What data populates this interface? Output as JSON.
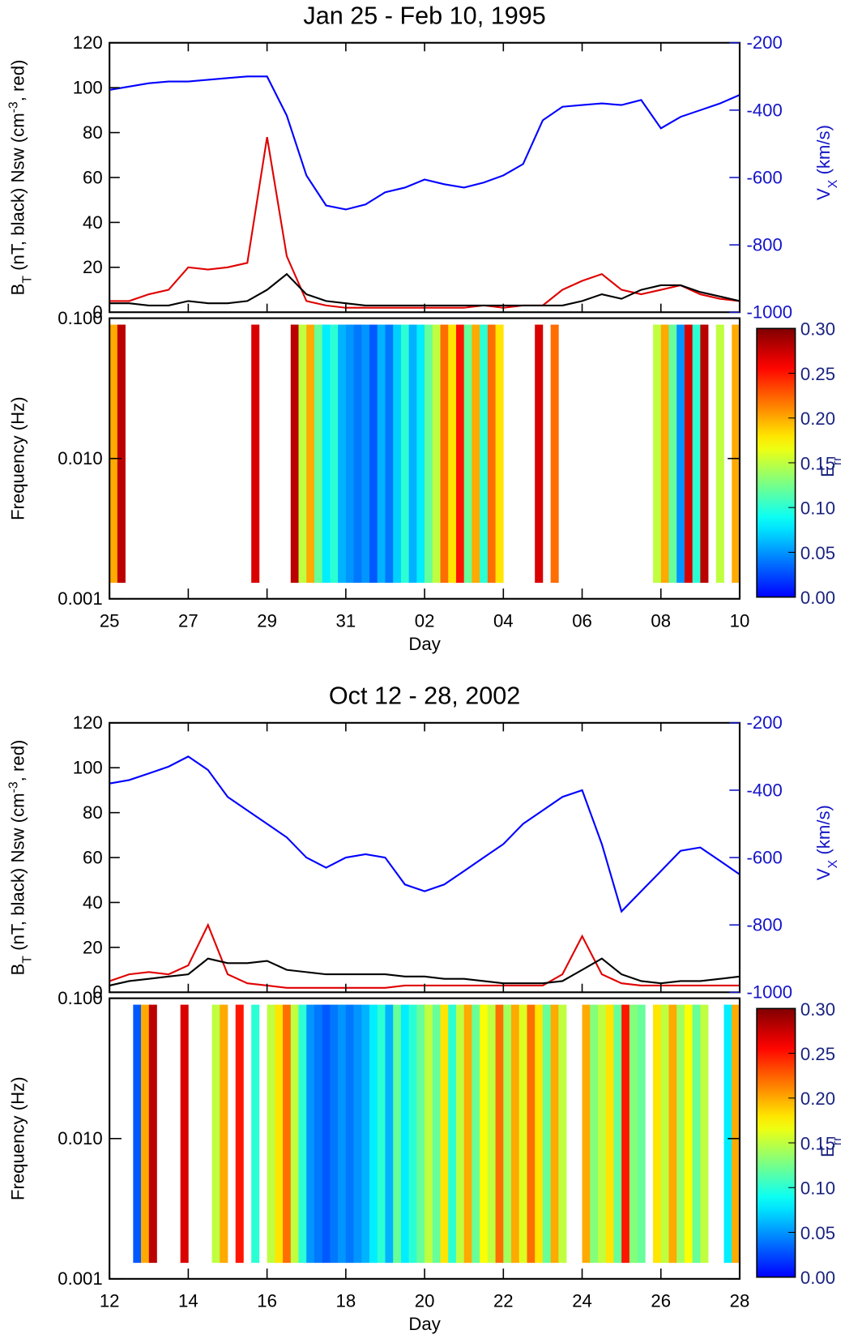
{
  "chart_data": [
    {
      "type": "line",
      "title": "Jan 25 - Feb 10, 1995",
      "x": [
        0,
        0.5,
        1,
        1.5,
        2,
        2.5,
        3,
        3.5,
        4,
        4.5,
        5,
        5.5,
        6,
        6.5,
        7,
        7.5,
        8,
        8.5,
        9,
        9.5,
        10,
        10.5,
        11,
        11.5,
        12,
        12.5,
        13,
        13.5,
        14,
        14.5,
        15,
        15.5,
        16
      ],
      "xlim": [
        0,
        16
      ],
      "ylim": [
        0,
        120
      ],
      "yticks": [
        0,
        20,
        40,
        60,
        80,
        100,
        120
      ],
      "y2lim": [
        -1000,
        -200
      ],
      "y2ticks": [
        -1000,
        -800,
        -600,
        -400,
        -200
      ],
      "ylabel": [
        {
          "text": "B"
        },
        {
          "text": "T",
          "script": "sub"
        },
        {
          "text": " (nT, black) Nsw (cm"
        },
        {
          "text": "-3",
          "script": "super"
        },
        {
          "text": ", red)"
        }
      ],
      "y2label": [
        {
          "text": "V"
        },
        {
          "text": "X",
          "script": "sub"
        },
        {
          "text": " (km/s)"
        }
      ],
      "y2color": "#1515c8",
      "series": [
        {
          "color": "#0000ff",
          "axis": "y2",
          "values": [
            -340,
            -330,
            -320,
            -315,
            -315,
            -310,
            -305,
            -300,
            -300,
            -416,
            -594,
            -683,
            -695,
            -680,
            -644,
            -630,
            -606,
            -620,
            -630,
            -615,
            -594,
            -560,
            -430,
            -390,
            -385,
            -380,
            -385,
            -370,
            -454,
            -420,
            -400,
            -380,
            -355
          ]
        },
        {
          "color": "#e00000",
          "values": [
            5,
            5,
            8,
            10,
            20,
            19,
            20,
            22,
            78,
            25,
            5,
            3,
            2,
            2,
            2,
            2,
            2,
            2,
            2,
            3,
            2,
            3,
            3,
            10,
            14,
            17,
            10,
            8,
            10,
            12,
            8,
            6,
            5
          ]
        },
        {
          "color": "#000000",
          "values": [
            4,
            4,
            3,
            3,
            5,
            4,
            4,
            5,
            10,
            17,
            8,
            5,
            4,
            3,
            3,
            3,
            3,
            3,
            3,
            3,
            3,
            3,
            3,
            3,
            5,
            8,
            6,
            10,
            12,
            12,
            9,
            7,
            5
          ]
        }
      ],
      "spectrogram": {
        "type": "heatmap",
        "log_y": true,
        "x": [
          0,
          0.2,
          0.4,
          0.6,
          0.8,
          1,
          1.2,
          1.4,
          1.6,
          1.8,
          2,
          2.2,
          2.4,
          2.6,
          2.8,
          3,
          3.2,
          3.4,
          3.6,
          3.8,
          4,
          4.2,
          4.4,
          4.6,
          4.8,
          5,
          5.2,
          5.4,
          5.6,
          5.8,
          6,
          6.2,
          6.4,
          6.6,
          6.8,
          7,
          7.2,
          7.4,
          7.6,
          7.8,
          8,
          8.2,
          8.4,
          8.6,
          8.8,
          9,
          9.2,
          9.4,
          9.6,
          9.8,
          10,
          10.2,
          10.4,
          10.6,
          10.8,
          11,
          11.2,
          11.4,
          11.6,
          11.8,
          12,
          12.2,
          12.4,
          12.6,
          12.8,
          13,
          13.2,
          13.4,
          13.6,
          13.8,
          14,
          14.2,
          14.4,
          14.6,
          14.8,
          15,
          15.2,
          15.4,
          15.6,
          15.8
        ],
        "values": [
          0.2,
          0.28,
          null,
          null,
          null,
          null,
          null,
          null,
          null,
          null,
          null,
          null,
          null,
          null,
          null,
          null,
          null,
          null,
          0.27,
          null,
          null,
          null,
          null,
          0.28,
          0.15,
          0.2,
          0.12,
          0.08,
          0.1,
          0.06,
          0.05,
          0.04,
          0.05,
          0.03,
          0.06,
          0.04,
          0.07,
          0.1,
          0.06,
          0.08,
          0.12,
          0.15,
          0.22,
          0.18,
          0.25,
          0.12,
          0.2,
          0.1,
          0.22,
          0.18,
          null,
          null,
          null,
          null,
          0.27,
          null,
          0.22,
          null,
          null,
          null,
          null,
          null,
          null,
          null,
          null,
          null,
          null,
          null,
          null,
          0.15,
          0.2,
          0.12,
          0.05,
          0.27,
          0.1,
          0.28,
          null,
          0.15,
          null,
          0.2
        ],
        "frequency_range": [
          0.0013,
          0.09
        ],
        "ylim": [
          0.001,
          0.1
        ],
        "yticks": [
          {
            "value": 0.001,
            "label": "0.001"
          },
          {
            "value": 0.01,
            "label": "0.010"
          },
          {
            "value": 0.1,
            "label": "0.100"
          }
        ],
        "ylabel": "Frequency (Hz)",
        "xlabel": "Day",
        "xticks": [
          {
            "value": 0,
            "label": "25"
          },
          {
            "value": 2,
            "label": "27"
          },
          {
            "value": 4,
            "label": "29"
          },
          {
            "value": 6,
            "label": "31"
          },
          {
            "value": 8,
            "label": "02"
          },
          {
            "value": 10,
            "label": "04"
          },
          {
            "value": 12,
            "label": "06"
          },
          {
            "value": 14,
            "label": "08"
          },
          {
            "value": 16,
            "label": "10"
          }
        ],
        "clim": [
          0,
          0.3
        ],
        "colorbar_ticks": [
          {
            "value": 0,
            "label": "0.00"
          },
          {
            "value": 0.05,
            "label": "0.05"
          },
          {
            "value": 0.1,
            "label": "0.10"
          },
          {
            "value": 0.15,
            "label": "0.15"
          },
          {
            "value": 0.2,
            "label": "0.20"
          },
          {
            "value": 0.25,
            "label": "0.25"
          },
          {
            "value": 0.3,
            "label": "0.30"
          }
        ],
        "colorbar_label": [
          {
            "text": "E"
          },
          {
            "text": "rr",
            "script": "sub"
          }
        ],
        "colorbar_color": "#1a237e"
      }
    },
    {
      "type": "line",
      "title": "Oct 12 - 28, 2002",
      "x": [
        0,
        0.5,
        1,
        1.5,
        2,
        2.5,
        3,
        3.5,
        4,
        4.5,
        5,
        5.5,
        6,
        6.5,
        7,
        7.5,
        8,
        8.5,
        9,
        9.5,
        10,
        10.5,
        11,
        11.5,
        12,
        12.5,
        13,
        13.5,
        14,
        14.5,
        15,
        15.5,
        16
      ],
      "xlim": [
        0,
        16
      ],
      "ylim": [
        0,
        120
      ],
      "yticks": [
        0,
        20,
        40,
        60,
        80,
        100,
        120
      ],
      "y2lim": [
        -1000,
        -200
      ],
      "y2ticks": [
        -1000,
        -800,
        -600,
        -400,
        -200
      ],
      "ylabel": [
        {
          "text": "B"
        },
        {
          "text": "T",
          "script": "sub"
        },
        {
          "text": " (nT, black) Nsw (cm"
        },
        {
          "text": "-3",
          "script": "super"
        },
        {
          "text": ", red)"
        }
      ],
      "y2label": [
        {
          "text": "V"
        },
        {
          "text": "X",
          "script": "sub"
        },
        {
          "text": " (km/s)"
        }
      ],
      "y2color": "#1515c8",
      "series": [
        {
          "color": "#0000ff",
          "axis": "y2",
          "values": [
            -380,
            -370,
            -350,
            -330,
            -300,
            -340,
            -420,
            -460,
            -500,
            -540,
            -600,
            -630,
            -600,
            -590,
            -600,
            -680,
            -700,
            -680,
            -640,
            -600,
            -560,
            -500,
            -460,
            -420,
            -400,
            -560,
            -760,
            -700,
            -640,
            -580,
            -570,
            -610,
            -650
          ]
        },
        {
          "color": "#e00000",
          "values": [
            5,
            8,
            9,
            8,
            12,
            30,
            8,
            4,
            3,
            2,
            2,
            2,
            2,
            2,
            2,
            3,
            3,
            3,
            3,
            3,
            3,
            3,
            3,
            8,
            25,
            8,
            4,
            3,
            3,
            3,
            3,
            3,
            3
          ]
        },
        {
          "color": "#000000",
          "values": [
            3,
            5,
            6,
            7,
            8,
            15,
            13,
            13,
            14,
            10,
            9,
            8,
            8,
            8,
            8,
            7,
            7,
            6,
            6,
            5,
            4,
            4,
            4,
            5,
            10,
            15,
            8,
            5,
            4,
            5,
            5,
            6,
            7
          ]
        }
      ],
      "spectrogram": {
        "type": "heatmap",
        "log_y": true,
        "x": [
          0,
          0.2,
          0.4,
          0.6,
          0.8,
          1,
          1.2,
          1.4,
          1.6,
          1.8,
          2,
          2.2,
          2.4,
          2.6,
          2.8,
          3,
          3.2,
          3.4,
          3.6,
          3.8,
          4,
          4.2,
          4.4,
          4.6,
          4.8,
          5,
          5.2,
          5.4,
          5.6,
          5.8,
          6,
          6.2,
          6.4,
          6.6,
          6.8,
          7,
          7.2,
          7.4,
          7.6,
          7.8,
          8,
          8.2,
          8.4,
          8.6,
          8.8,
          9,
          9.2,
          9.4,
          9.6,
          9.8,
          10,
          10.2,
          10.4,
          10.6,
          10.8,
          11,
          11.2,
          11.4,
          11.6,
          11.8,
          12,
          12.2,
          12.4,
          12.6,
          12.8,
          13,
          13.2,
          13.4,
          13.6,
          13.8,
          14,
          14.2,
          14.4,
          14.6,
          14.8,
          15,
          15.2,
          15.4,
          15.6,
          15.8
        ],
        "values": [
          null,
          null,
          null,
          0.03,
          0.2,
          0.28,
          null,
          null,
          null,
          0.27,
          null,
          null,
          null,
          0.15,
          0.2,
          null,
          0.25,
          null,
          0.1,
          null,
          0.15,
          0.18,
          0.22,
          0.15,
          0.1,
          0.05,
          0.04,
          0.03,
          0.04,
          0.05,
          0.04,
          0.05,
          0.06,
          0.08,
          0.1,
          0.06,
          0.12,
          0.08,
          0.1,
          0.12,
          0.15,
          0.12,
          0.18,
          0.1,
          0.15,
          0.2,
          0.12,
          0.17,
          0.15,
          0.22,
          0.14,
          0.2,
          0.16,
          0.22,
          0.18,
          0.12,
          0.2,
          0.15,
          null,
          null,
          0.2,
          0.13,
          0.15,
          0.18,
          0.12,
          0.25,
          0.13,
          0.12,
          null,
          0.18,
          0.15,
          0.2,
          0.14,
          0.17,
          0.12,
          0.15,
          null,
          null,
          0.08,
          0.2
        ],
        "frequency_range": [
          0.0013,
          0.09
        ],
        "ylim": [
          0.001,
          0.1
        ],
        "yticks": [
          {
            "value": 0.001,
            "label": "0.001"
          },
          {
            "value": 0.01,
            "label": "0.010"
          },
          {
            "value": 0.1,
            "label": "0.100"
          }
        ],
        "ylabel": "Frequency (Hz)",
        "xlabel": "Day",
        "xticks": [
          {
            "value": 0,
            "label": "12"
          },
          {
            "value": 2,
            "label": "14"
          },
          {
            "value": 4,
            "label": "16"
          },
          {
            "value": 6,
            "label": "18"
          },
          {
            "value": 8,
            "label": "20"
          },
          {
            "value": 10,
            "label": "22"
          },
          {
            "value": 12,
            "label": "24"
          },
          {
            "value": 14,
            "label": "26"
          },
          {
            "value": 16,
            "label": "28"
          }
        ],
        "clim": [
          0,
          0.3
        ],
        "colorbar_ticks": [
          {
            "value": 0,
            "label": "0.00"
          },
          {
            "value": 0.05,
            "label": "0.05"
          },
          {
            "value": 0.1,
            "label": "0.10"
          },
          {
            "value": 0.15,
            "label": "0.15"
          },
          {
            "value": 0.2,
            "label": "0.20"
          },
          {
            "value": 0.25,
            "label": "0.25"
          },
          {
            "value": 0.3,
            "label": "0.30"
          }
        ],
        "colorbar_label": [
          {
            "text": "E"
          },
          {
            "text": "rr",
            "script": "sub"
          }
        ],
        "colorbar_color": "#1a237e"
      }
    }
  ]
}
